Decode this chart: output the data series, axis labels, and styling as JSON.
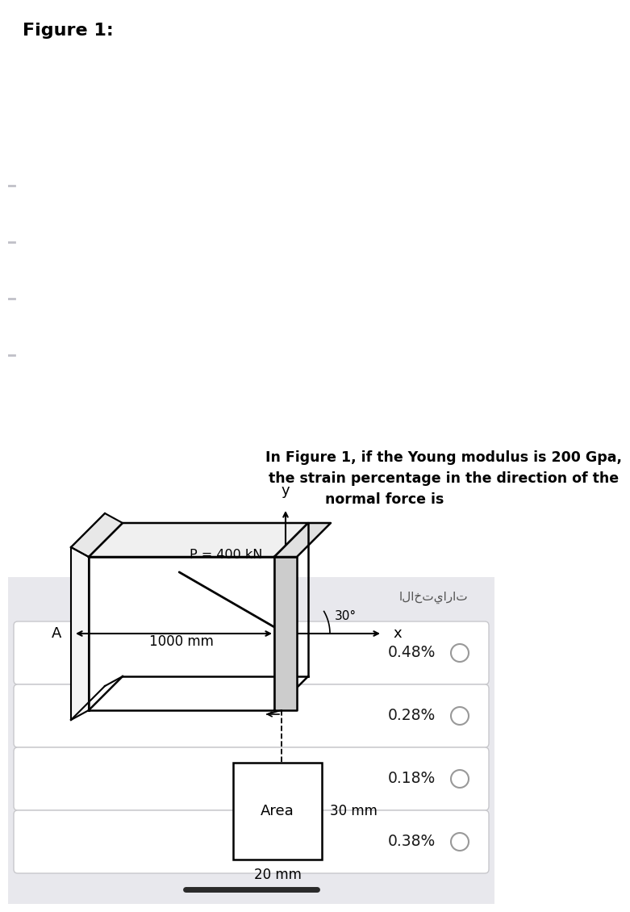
{
  "title": "Figure 1:",
  "figure_bg": "#ffffff",
  "upper_bg": "#ffffff",
  "lower_bg": "#e8e8ed",
  "question_text_line1": "In Figure 1, if the Young modulus is 200 Gpa,",
  "question_text_line2": "the strain percentage in the direction of the",
  "question_text_line3": "normal force is",
  "arabic_label": "الاختيارات",
  "choices": [
    "0.48%",
    "0.28%",
    "0.18%",
    "0.38%"
  ],
  "beam_label": "1000 mm",
  "point_label": "A",
  "axis_x_label": "x",
  "axis_y_label": "y",
  "force_label": "P = 400 kN",
  "angle_label": "30°",
  "area_label": "Area",
  "dim1_label": "30 mm",
  "dim2_label": "20 mm",
  "choice_bg": "#ffffff",
  "choice_border": "#c8c8cc",
  "choice_text_color": "#1a1a1a",
  "question_bg": "#ffffff",
  "bottom_bar_color": "#2a2a2a",
  "sidebar_color": "#c0c0c8"
}
